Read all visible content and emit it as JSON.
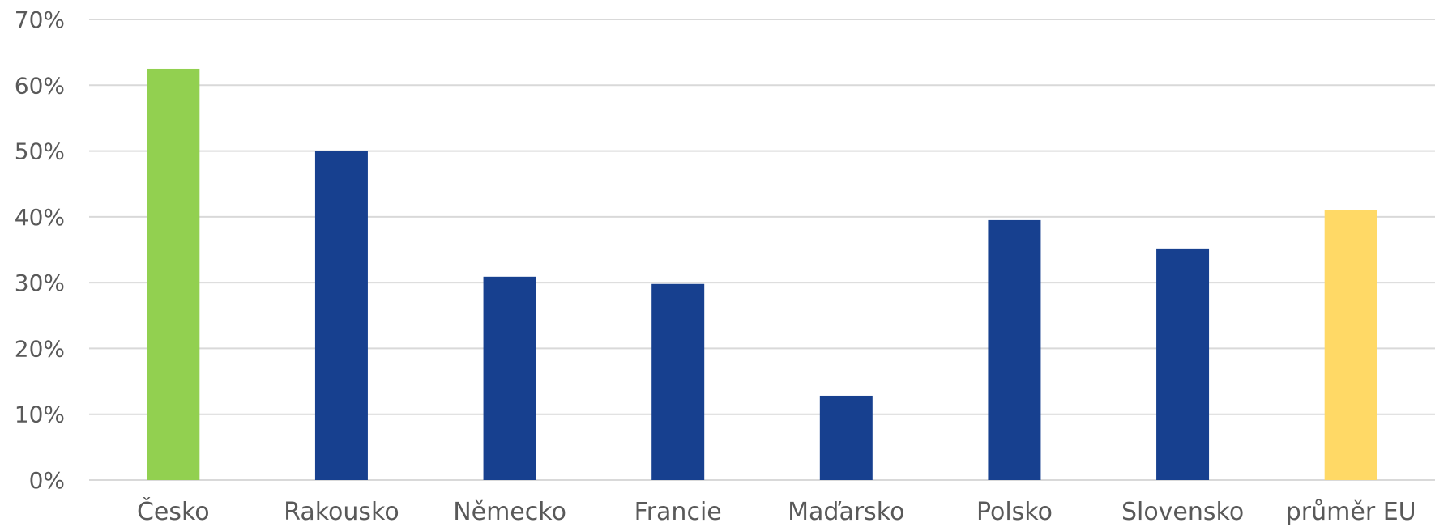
{
  "chart_data": {
    "type": "bar",
    "categories": [
      "Česko",
      "Rakousko",
      "Německo",
      "Francie",
      "Maďarsko",
      "Polsko",
      "Slovensko",
      "průměr EU"
    ],
    "values": [
      62.5,
      50.0,
      30.9,
      29.8,
      12.8,
      39.5,
      35.2,
      41.0
    ],
    "bar_colors": [
      "#92d050",
      "#17408f",
      "#17408f",
      "#17408f",
      "#17408f",
      "#17408f",
      "#17408f",
      "#ffd966"
    ],
    "ylim": [
      0,
      70
    ],
    "yticks": [
      0,
      10,
      20,
      30,
      40,
      50,
      60,
      70
    ],
    "ytick_labels": [
      "0%",
      "10%",
      "20%",
      "30%",
      "40%",
      "50%",
      "60%",
      "70%"
    ],
    "grid": true,
    "legend": "none"
  }
}
